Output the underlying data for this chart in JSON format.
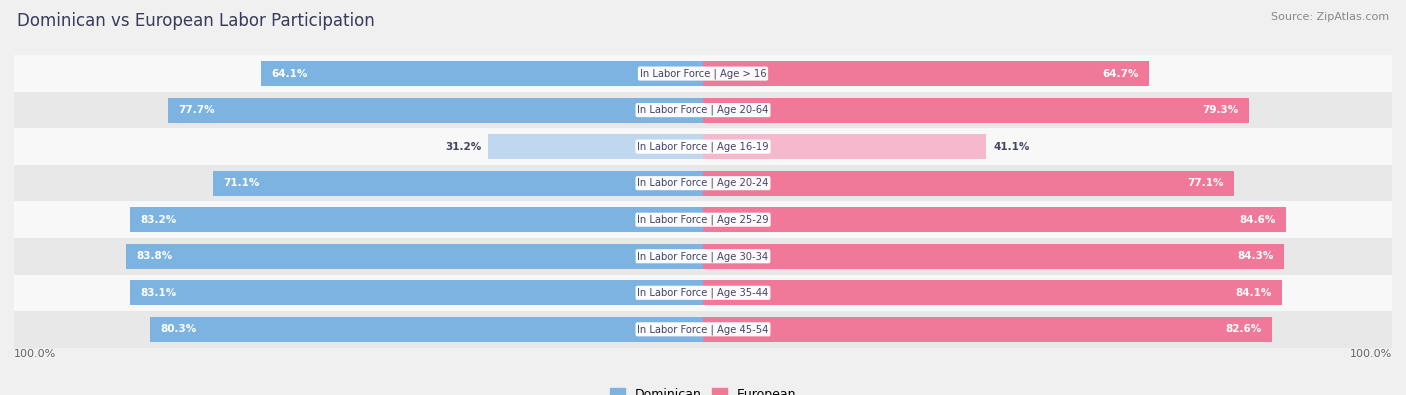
{
  "title": "Dominican vs European Labor Participation",
  "source": "Source: ZipAtlas.com",
  "categories": [
    "In Labor Force | Age > 16",
    "In Labor Force | Age 20-64",
    "In Labor Force | Age 16-19",
    "In Labor Force | Age 20-24",
    "In Labor Force | Age 25-29",
    "In Labor Force | Age 30-34",
    "In Labor Force | Age 35-44",
    "In Labor Force | Age 45-54"
  ],
  "dominican": [
    64.1,
    77.7,
    31.2,
    71.1,
    83.2,
    83.8,
    83.1,
    80.3
  ],
  "european": [
    64.7,
    79.3,
    41.1,
    77.1,
    84.6,
    84.3,
    84.1,
    82.6
  ],
  "dominican_color": "#7cb3e0",
  "dominican_color_light": "#c0d8ef",
  "european_color": "#f07898",
  "european_color_light": "#f5b8cc",
  "bg_color": "#f0f0f0",
  "row_bg_even": "#e8e8e8",
  "row_bg_odd": "#f8f8f8",
  "title_color": "#3a3a5a",
  "label_color": "#444466",
  "axis_label_color": "#666666",
  "max_val": 100.0
}
